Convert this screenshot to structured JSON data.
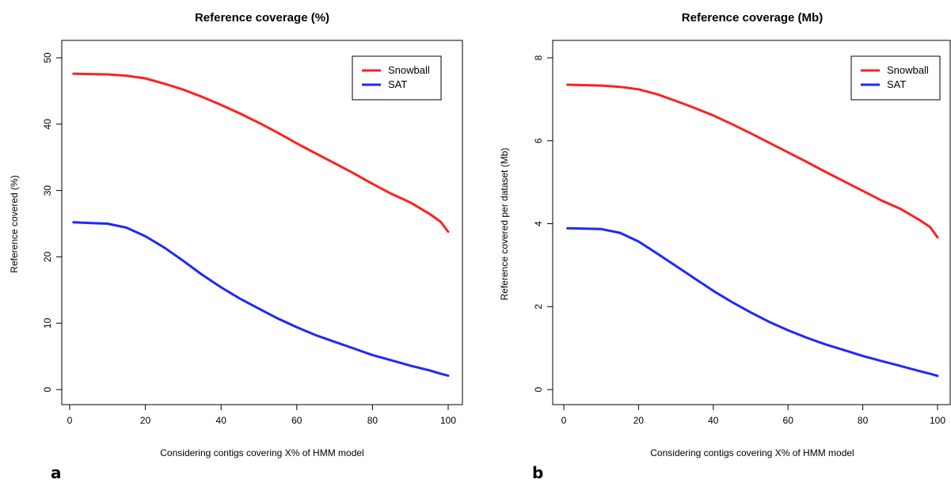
{
  "chart_data": [
    {
      "type": "line",
      "panel_label": "a",
      "title": "Reference coverage (%)",
      "xlabel": "Considering contigs covering X% of HMM model",
      "ylabel": "Reference covered (%)",
      "xlim": [
        0,
        100
      ],
      "ylim": [
        0,
        50
      ],
      "xticks": [
        0,
        20,
        40,
        60,
        80,
        100
      ],
      "yticks": [
        0,
        10,
        20,
        30,
        40,
        50
      ],
      "grid": false,
      "legend": "top-right",
      "x": [
        1,
        10,
        15,
        20,
        25,
        30,
        35,
        40,
        45,
        50,
        55,
        60,
        65,
        70,
        75,
        80,
        85,
        90,
        95,
        98,
        100
      ],
      "series": [
        {
          "name": "Snowball",
          "color": "#ff2020",
          "values": [
            47.6,
            47.5,
            47.3,
            46.9,
            46.1,
            45.2,
            44.1,
            42.9,
            41.6,
            40.2,
            38.7,
            37.1,
            35.6,
            34.1,
            32.6,
            31.0,
            29.5,
            28.2,
            26.5,
            25.3,
            23.8
          ]
        },
        {
          "name": "SAT",
          "color": "#1e28ff",
          "values": [
            25.2,
            25.0,
            24.4,
            23.1,
            21.4,
            19.4,
            17.3,
            15.4,
            13.7,
            12.2,
            10.7,
            9.4,
            8.2,
            7.2,
            6.2,
            5.2,
            4.4,
            3.6,
            2.9,
            2.4,
            2.1
          ]
        }
      ]
    },
    {
      "type": "line",
      "panel_label": "b",
      "title": "Reference coverage (Mb)",
      "xlabel": "Considering contigs covering X% of HMM model",
      "ylabel": "Reference covered per dataset (Mb)",
      "xlim": [
        0,
        100
      ],
      "ylim": [
        0,
        8
      ],
      "xticks": [
        0,
        20,
        40,
        60,
        80,
        100
      ],
      "yticks": [
        0,
        2,
        4,
        6,
        8
      ],
      "grid": false,
      "legend": "top-right",
      "x": [
        1,
        10,
        15,
        20,
        25,
        30,
        35,
        40,
        45,
        50,
        55,
        60,
        65,
        70,
        75,
        80,
        85,
        90,
        95,
        98,
        100
      ],
      "series": [
        {
          "name": "Snowball",
          "color": "#ff2020",
          "values": [
            7.35,
            7.33,
            7.3,
            7.24,
            7.12,
            6.96,
            6.79,
            6.61,
            6.4,
            6.18,
            5.95,
            5.72,
            5.49,
            5.25,
            5.02,
            4.79,
            4.56,
            4.36,
            4.1,
            3.92,
            3.67
          ]
        },
        {
          "name": "SAT",
          "color": "#1e28ff",
          "values": [
            3.89,
            3.87,
            3.78,
            3.57,
            3.28,
            2.98,
            2.68,
            2.38,
            2.11,
            1.86,
            1.63,
            1.43,
            1.25,
            1.09,
            0.95,
            0.81,
            0.69,
            0.57,
            0.45,
            0.38,
            0.33
          ]
        }
      ]
    }
  ]
}
